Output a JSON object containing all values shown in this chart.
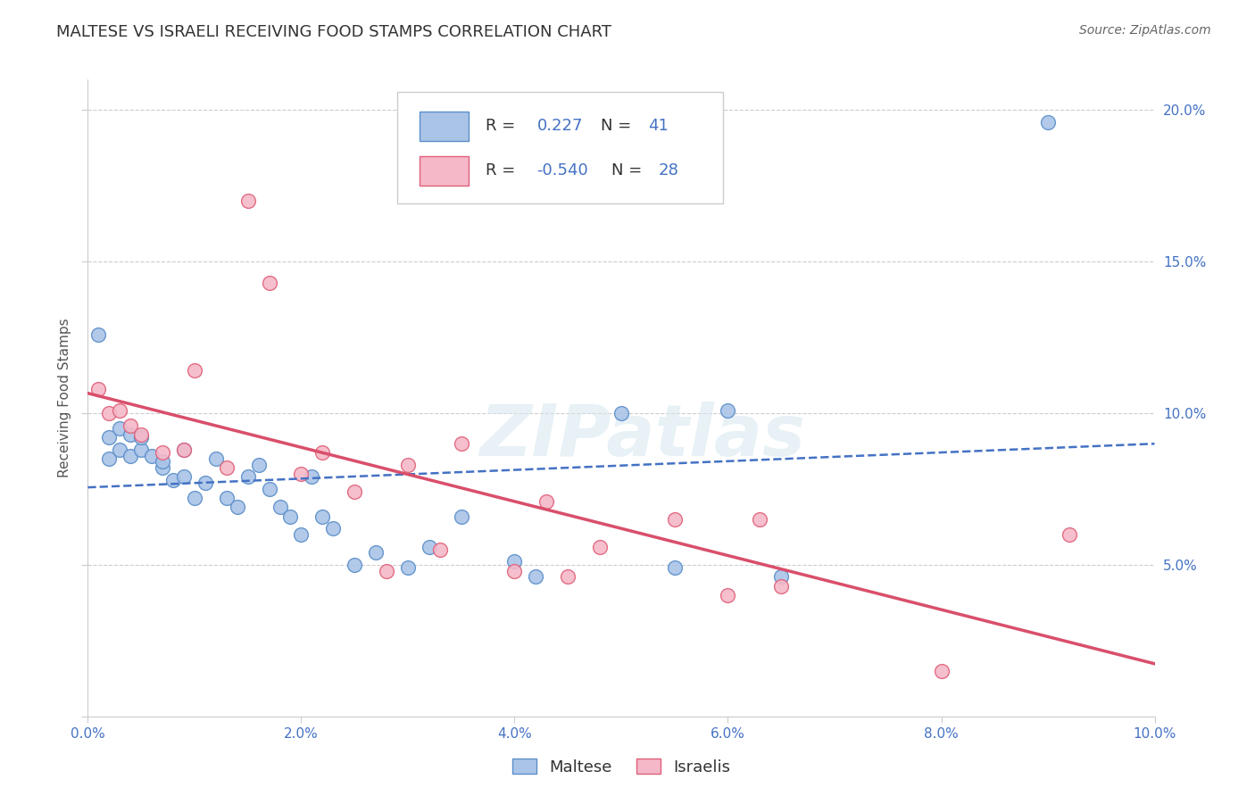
{
  "title": "MALTESE VS ISRAELI RECEIVING FOOD STAMPS CORRELATION CHART",
  "source": "Source: ZipAtlas.com",
  "ylabel_label": "Receiving Food Stamps",
  "xlim": [
    0.0,
    0.1
  ],
  "ylim": [
    0.0,
    0.21
  ],
  "xticks": [
    0.0,
    0.02,
    0.04,
    0.06,
    0.08,
    0.1
  ],
  "xtick_labels": [
    "0.0%",
    "2.0%",
    "4.0%",
    "6.0%",
    "8.0%",
    "10.0%"
  ],
  "yticks": [
    0.0,
    0.05,
    0.1,
    0.15,
    0.2
  ],
  "ytick_labels": [
    "",
    "5.0%",
    "10.0%",
    "15.0%",
    "20.0%"
  ],
  "grid_color": "#cccccc",
  "background_color": "#ffffff",
  "maltese_color": "#aac4e8",
  "maltese_edge_color": "#5b8fc9",
  "israeli_color": "#f5b8c8",
  "israeli_edge_color": "#e0607a",
  "maltese_R": 0.227,
  "maltese_N": 41,
  "israeli_R": -0.54,
  "israeli_N": 28,
  "maltese_x": [
    0.001,
    0.002,
    0.002,
    0.003,
    0.003,
    0.004,
    0.004,
    0.005,
    0.005,
    0.006,
    0.007,
    0.007,
    0.008,
    0.009,
    0.009,
    0.01,
    0.011,
    0.012,
    0.013,
    0.014,
    0.015,
    0.016,
    0.017,
    0.018,
    0.019,
    0.02,
    0.021,
    0.022,
    0.023,
    0.025,
    0.027,
    0.03,
    0.032,
    0.035,
    0.04,
    0.042,
    0.05,
    0.055,
    0.06,
    0.065,
    0.09
  ],
  "maltese_y": [
    0.126,
    0.085,
    0.092,
    0.088,
    0.095,
    0.086,
    0.093,
    0.088,
    0.092,
    0.086,
    0.082,
    0.084,
    0.078,
    0.088,
    0.079,
    0.072,
    0.077,
    0.085,
    0.072,
    0.069,
    0.079,
    0.083,
    0.075,
    0.069,
    0.066,
    0.06,
    0.079,
    0.066,
    0.062,
    0.05,
    0.054,
    0.049,
    0.056,
    0.066,
    0.051,
    0.046,
    0.1,
    0.049,
    0.101,
    0.046,
    0.196
  ],
  "israeli_x": [
    0.001,
    0.002,
    0.003,
    0.004,
    0.005,
    0.007,
    0.009,
    0.01,
    0.013,
    0.015,
    0.017,
    0.02,
    0.022,
    0.025,
    0.028,
    0.03,
    0.033,
    0.035,
    0.04,
    0.043,
    0.045,
    0.048,
    0.055,
    0.06,
    0.063,
    0.065,
    0.08,
    0.092
  ],
  "israeli_y": [
    0.108,
    0.1,
    0.101,
    0.096,
    0.093,
    0.087,
    0.088,
    0.114,
    0.082,
    0.17,
    0.143,
    0.08,
    0.087,
    0.074,
    0.048,
    0.083,
    0.055,
    0.09,
    0.048,
    0.071,
    0.046,
    0.056,
    0.065,
    0.04,
    0.065,
    0.043,
    0.015,
    0.06
  ],
  "maltese_line_color": "#4472c4",
  "israeli_line_color": "#d94f6b",
  "watermark": "ZIPatlas",
  "title_fontsize": 13,
  "source_fontsize": 10,
  "axis_label_fontsize": 11,
  "tick_fontsize": 11
}
